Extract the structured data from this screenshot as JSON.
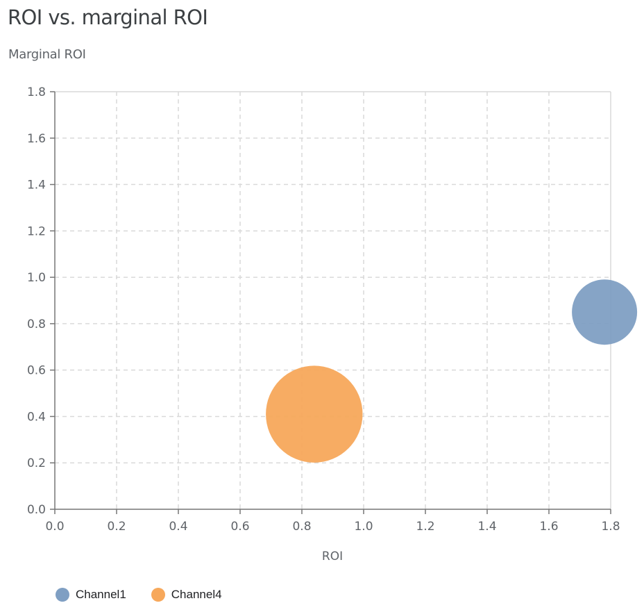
{
  "chart_data": {
    "type": "scatter",
    "title": "ROI vs. marginal ROI",
    "ylabel": "Marginal ROI",
    "xlabel": "ROI",
    "xlim": [
      0,
      1.8
    ],
    "ylim": [
      0,
      1.8
    ],
    "x_ticks": [
      "0.0",
      "0.2",
      "0.4",
      "0.6",
      "0.8",
      "1.0",
      "1.2",
      "1.4",
      "1.6",
      "1.8"
    ],
    "y_ticks": [
      "0.0",
      "0.2",
      "0.4",
      "0.6",
      "0.8",
      "1.0",
      "1.2",
      "1.4",
      "1.6",
      "1.8"
    ],
    "grid": true,
    "legend_position": "bottom-left",
    "series": [
      {
        "name": "Channel1",
        "color": "#7f9fc3",
        "x": 1.78,
        "y": 0.85,
        "relative_size": 1.0
      },
      {
        "name": "Channel4",
        "color": "#f7a85b",
        "x": 0.84,
        "y": 0.41,
        "relative_size": 2.2
      }
    ]
  }
}
